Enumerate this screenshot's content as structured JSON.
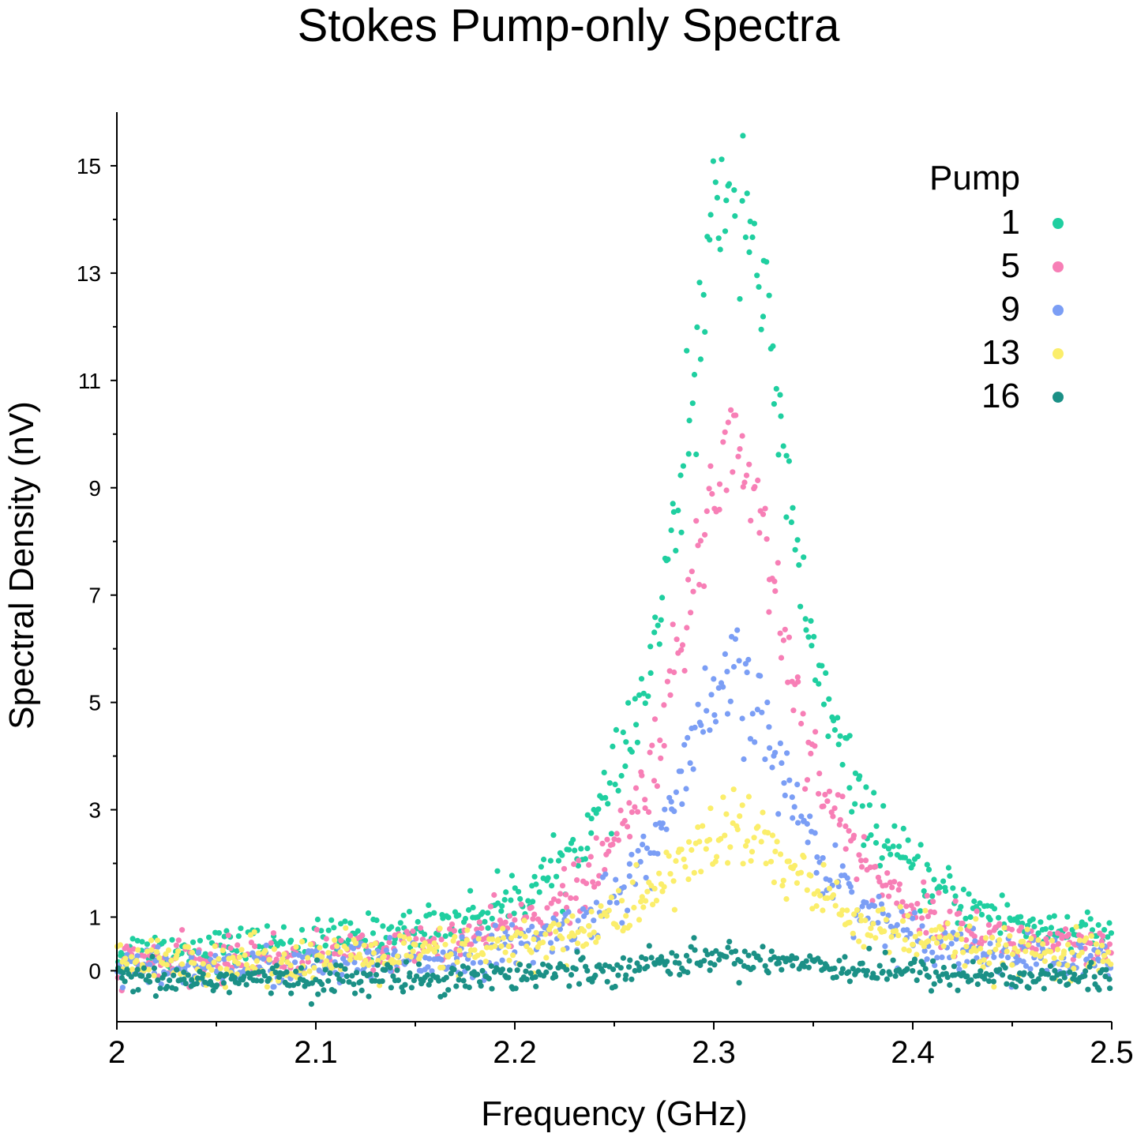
{
  "chart_data": {
    "type": "scatter",
    "title": "Stokes Pump-only Spectra",
    "xlabel": "Frequency (GHz)",
    "ylabel": "Spectral Density (nV)",
    "xlim": [
      2.0,
      2.5
    ],
    "ylim": [
      -0.95,
      16
    ],
    "x_ticks": [
      2,
      2.1,
      2.2,
      2.3,
      2.4,
      2.5
    ],
    "x_tick_labels": [
      "2",
      "2.1",
      "2.2",
      "2.3",
      "2.4",
      "2.5"
    ],
    "y_ticks": [
      0,
      1,
      3,
      5,
      7,
      9,
      11,
      13,
      15
    ],
    "y_tick_labels": [
      "0",
      "1",
      "3",
      "5",
      "7",
      "9",
      "11",
      "13",
      "15"
    ],
    "y_minor_ticks": [
      2,
      4,
      6,
      8,
      10,
      12,
      14
    ],
    "x_minor_ticks": [
      2.05,
      2.15,
      2.25,
      2.35,
      2.45
    ],
    "grid": false,
    "legend": {
      "title": "Pump",
      "position": "top-right"
    },
    "series": [
      {
        "name": "1",
        "color": "#1fcfa0",
        "model": {
          "center": 2.31,
          "peak": 14.9,
          "hwhm": 0.032,
          "offset": 0.2,
          "noise_rel": 0.045,
          "noise_abs": 0.18,
          "points": 520
        }
      },
      {
        "name": "5",
        "color": "#f77fb6",
        "model": {
          "center": 2.31,
          "peak": 9.8,
          "hwhm": 0.033,
          "offset": 0.05,
          "noise_rel": 0.05,
          "noise_abs": 0.18,
          "points": 520
        }
      },
      {
        "name": "9",
        "color": "#7b9ef5",
        "model": {
          "center": 2.31,
          "peak": 5.4,
          "hwhm": 0.036,
          "offset": -0.05,
          "noise_rel": 0.06,
          "noise_abs": 0.18,
          "points": 520
        }
      },
      {
        "name": "13",
        "color": "#fbee6b",
        "model": {
          "center": 2.31,
          "peak": 2.5,
          "hwhm": 0.045,
          "offset": 0.1,
          "noise_rel": 0.08,
          "noise_abs": 0.2,
          "points": 520
        }
      },
      {
        "name": "16",
        "color": "#1b9086",
        "model": {
          "center": 2.31,
          "peak": 0.45,
          "hwhm": 0.07,
          "offset": -0.2,
          "noise_rel": 0.0,
          "noise_abs": 0.14,
          "points": 520
        }
      }
    ]
  }
}
